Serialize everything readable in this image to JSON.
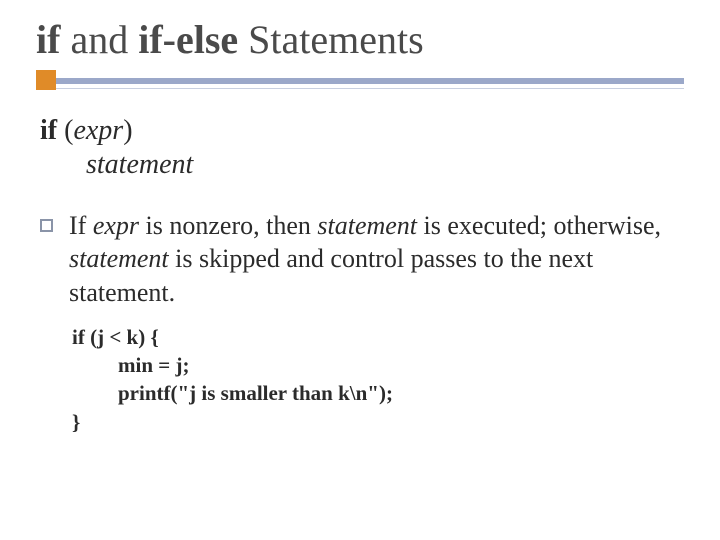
{
  "title": {
    "part1_bold": "if",
    "part2": " and ",
    "part3_bold": "if-else",
    "part4": " Statements"
  },
  "syntax": {
    "kw": "if",
    "paren_open": " (",
    "expr": "expr",
    "paren_close": ")",
    "stmt": "statement"
  },
  "bullet": {
    "t1": "If ",
    "e1": "expr",
    "t2": " is nonzero, then ",
    "e2": "statement",
    "t3": " is executed; otherwise, ",
    "e3": "statement",
    "t4": " is skipped and control passes to the next statement."
  },
  "code": {
    "l1": "if (j < k) {",
    "l2": "min = j;",
    "l3": "printf(\"j is smaller than k\\n\");",
    "l4": "}"
  },
  "colors": {
    "accent_square": "#e08b28",
    "accent_bar": "#9ba8c9",
    "thin_line": "#c9d0e0",
    "title_color": "#4a4a4a",
    "text_color": "#2b2b2b",
    "bullet_border": "#8a94a8",
    "background": "#ffffff"
  },
  "typography": {
    "title_fontsize": 40,
    "syntax_fontsize": 28,
    "body_fontsize": 26,
    "code_fontsize": 21
  }
}
